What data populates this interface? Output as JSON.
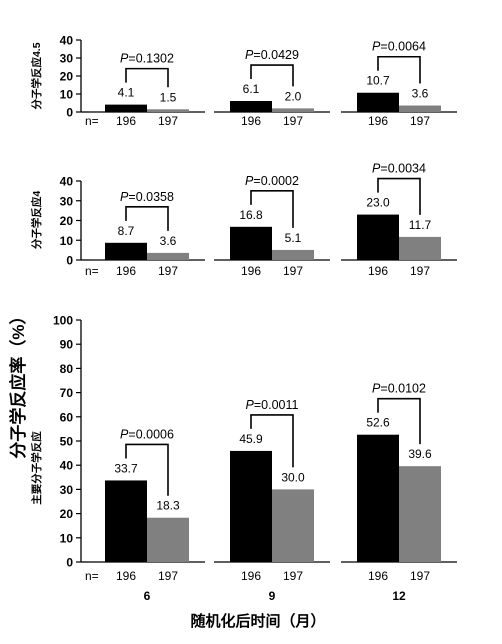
{
  "figure": {
    "ylabel_main": "分子学反应率（%）",
    "xlabel": "随机化后时间（月）"
  },
  "chart_data": [
    {
      "type": "bar",
      "ylabel": "分子学反应4.5",
      "ylim": [
        0,
        40
      ],
      "yticks": [
        0,
        10,
        20,
        30,
        40
      ],
      "categories": [
        "6",
        "9",
        "12"
      ],
      "series": [
        {
          "values": [
            4.1,
            6.1,
            10.7
          ],
          "n": "196",
          "color": "#000000"
        },
        {
          "values": [
            1.5,
            2.0,
            3.6
          ],
          "n": "197",
          "color": "#808080"
        }
      ],
      "p_values": [
        "P=0.1302",
        "P=0.0429",
        "P=0.0064"
      ],
      "n_label": "n=",
      "show_category_labels": false
    },
    {
      "type": "bar",
      "ylabel": "分子学反应4",
      "ylim": [
        0,
        40
      ],
      "yticks": [
        0,
        10,
        20,
        30,
        40
      ],
      "categories": [
        "6",
        "9",
        "12"
      ],
      "series": [
        {
          "values": [
            8.7,
            16.8,
            23.0
          ],
          "n": "196",
          "color": "#000000"
        },
        {
          "values": [
            3.6,
            5.1,
            11.7
          ],
          "n": "197",
          "color": "#808080"
        }
      ],
      "p_values": [
        "P=0.0358",
        "P=0.0002",
        "P=0.0034"
      ],
      "n_label": "n=",
      "show_category_labels": false
    },
    {
      "type": "bar",
      "ylabel": "主要分子学反应",
      "ylim": [
        0,
        100
      ],
      "yticks": [
        0,
        10,
        20,
        30,
        40,
        50,
        60,
        70,
        80,
        90,
        100
      ],
      "categories": [
        "6",
        "9",
        "12"
      ],
      "series": [
        {
          "values": [
            33.7,
            45.9,
            52.6
          ],
          "n": "196",
          "color": "#000000"
        },
        {
          "values": [
            18.3,
            30.0,
            39.6
          ],
          "n": "197",
          "color": "#808080"
        }
      ],
      "p_values": [
        "P=0.0006",
        "P=0.0011",
        "P=0.0102"
      ],
      "n_label": "n=",
      "show_category_labels": true
    }
  ]
}
